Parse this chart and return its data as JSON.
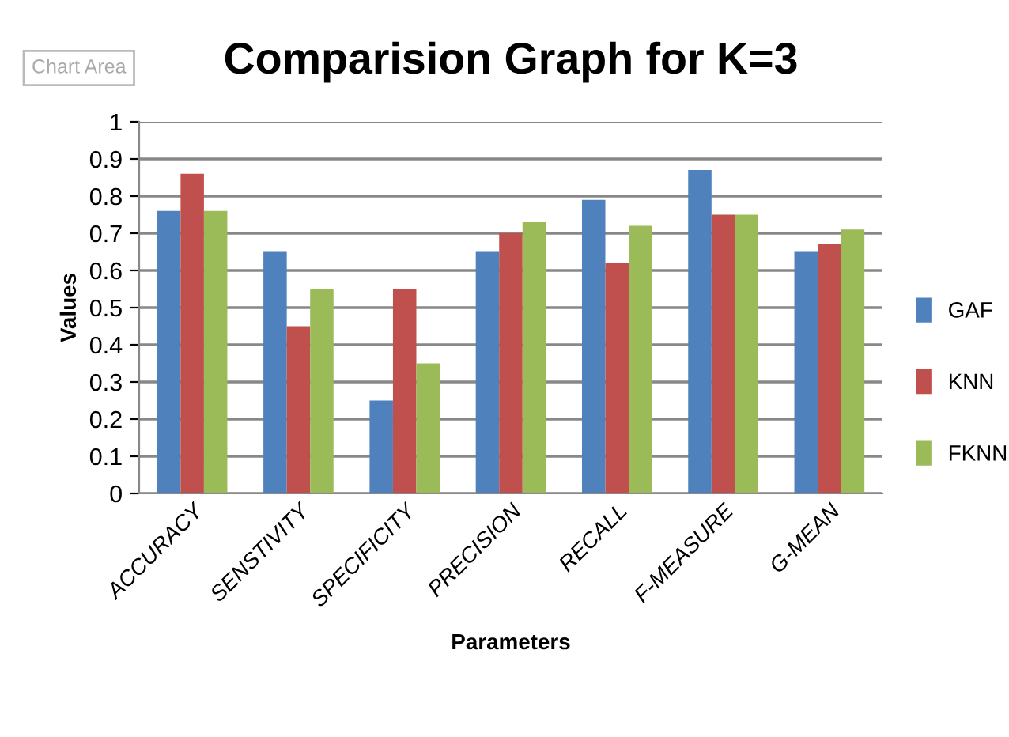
{
  "chart_data": {
    "type": "bar",
    "title": "Comparision Graph for K=3",
    "xlabel": "Parameters",
    "ylabel": "Values",
    "annotations": [
      "Chart Area"
    ],
    "categories": [
      "ACCURACY",
      "SENSTIVITY",
      "SPECIFICITY",
      "PRECISION",
      "RECALL",
      "F-MEASURE",
      "G-MEAN"
    ],
    "series": [
      {
        "name": "GAF",
        "color": "#4f81bd",
        "values": [
          0.76,
          0.65,
          0.25,
          0.65,
          0.79,
          0.87,
          0.65
        ]
      },
      {
        "name": "KNN",
        "color": "#c0504d",
        "values": [
          0.86,
          0.45,
          0.55,
          0.7,
          0.62,
          0.75,
          0.67
        ]
      },
      {
        "name": "FKNN",
        "color": "#9bbb59",
        "values": [
          0.76,
          0.55,
          0.35,
          0.73,
          0.72,
          0.75,
          0.71
        ]
      }
    ],
    "ylim": [
      0,
      1
    ],
    "yticks": [
      0,
      0.1,
      0.2,
      0.3,
      0.4,
      0.5,
      0.6,
      0.7,
      0.8,
      0.9,
      1
    ],
    "grid": "y",
    "legend": "right"
  }
}
